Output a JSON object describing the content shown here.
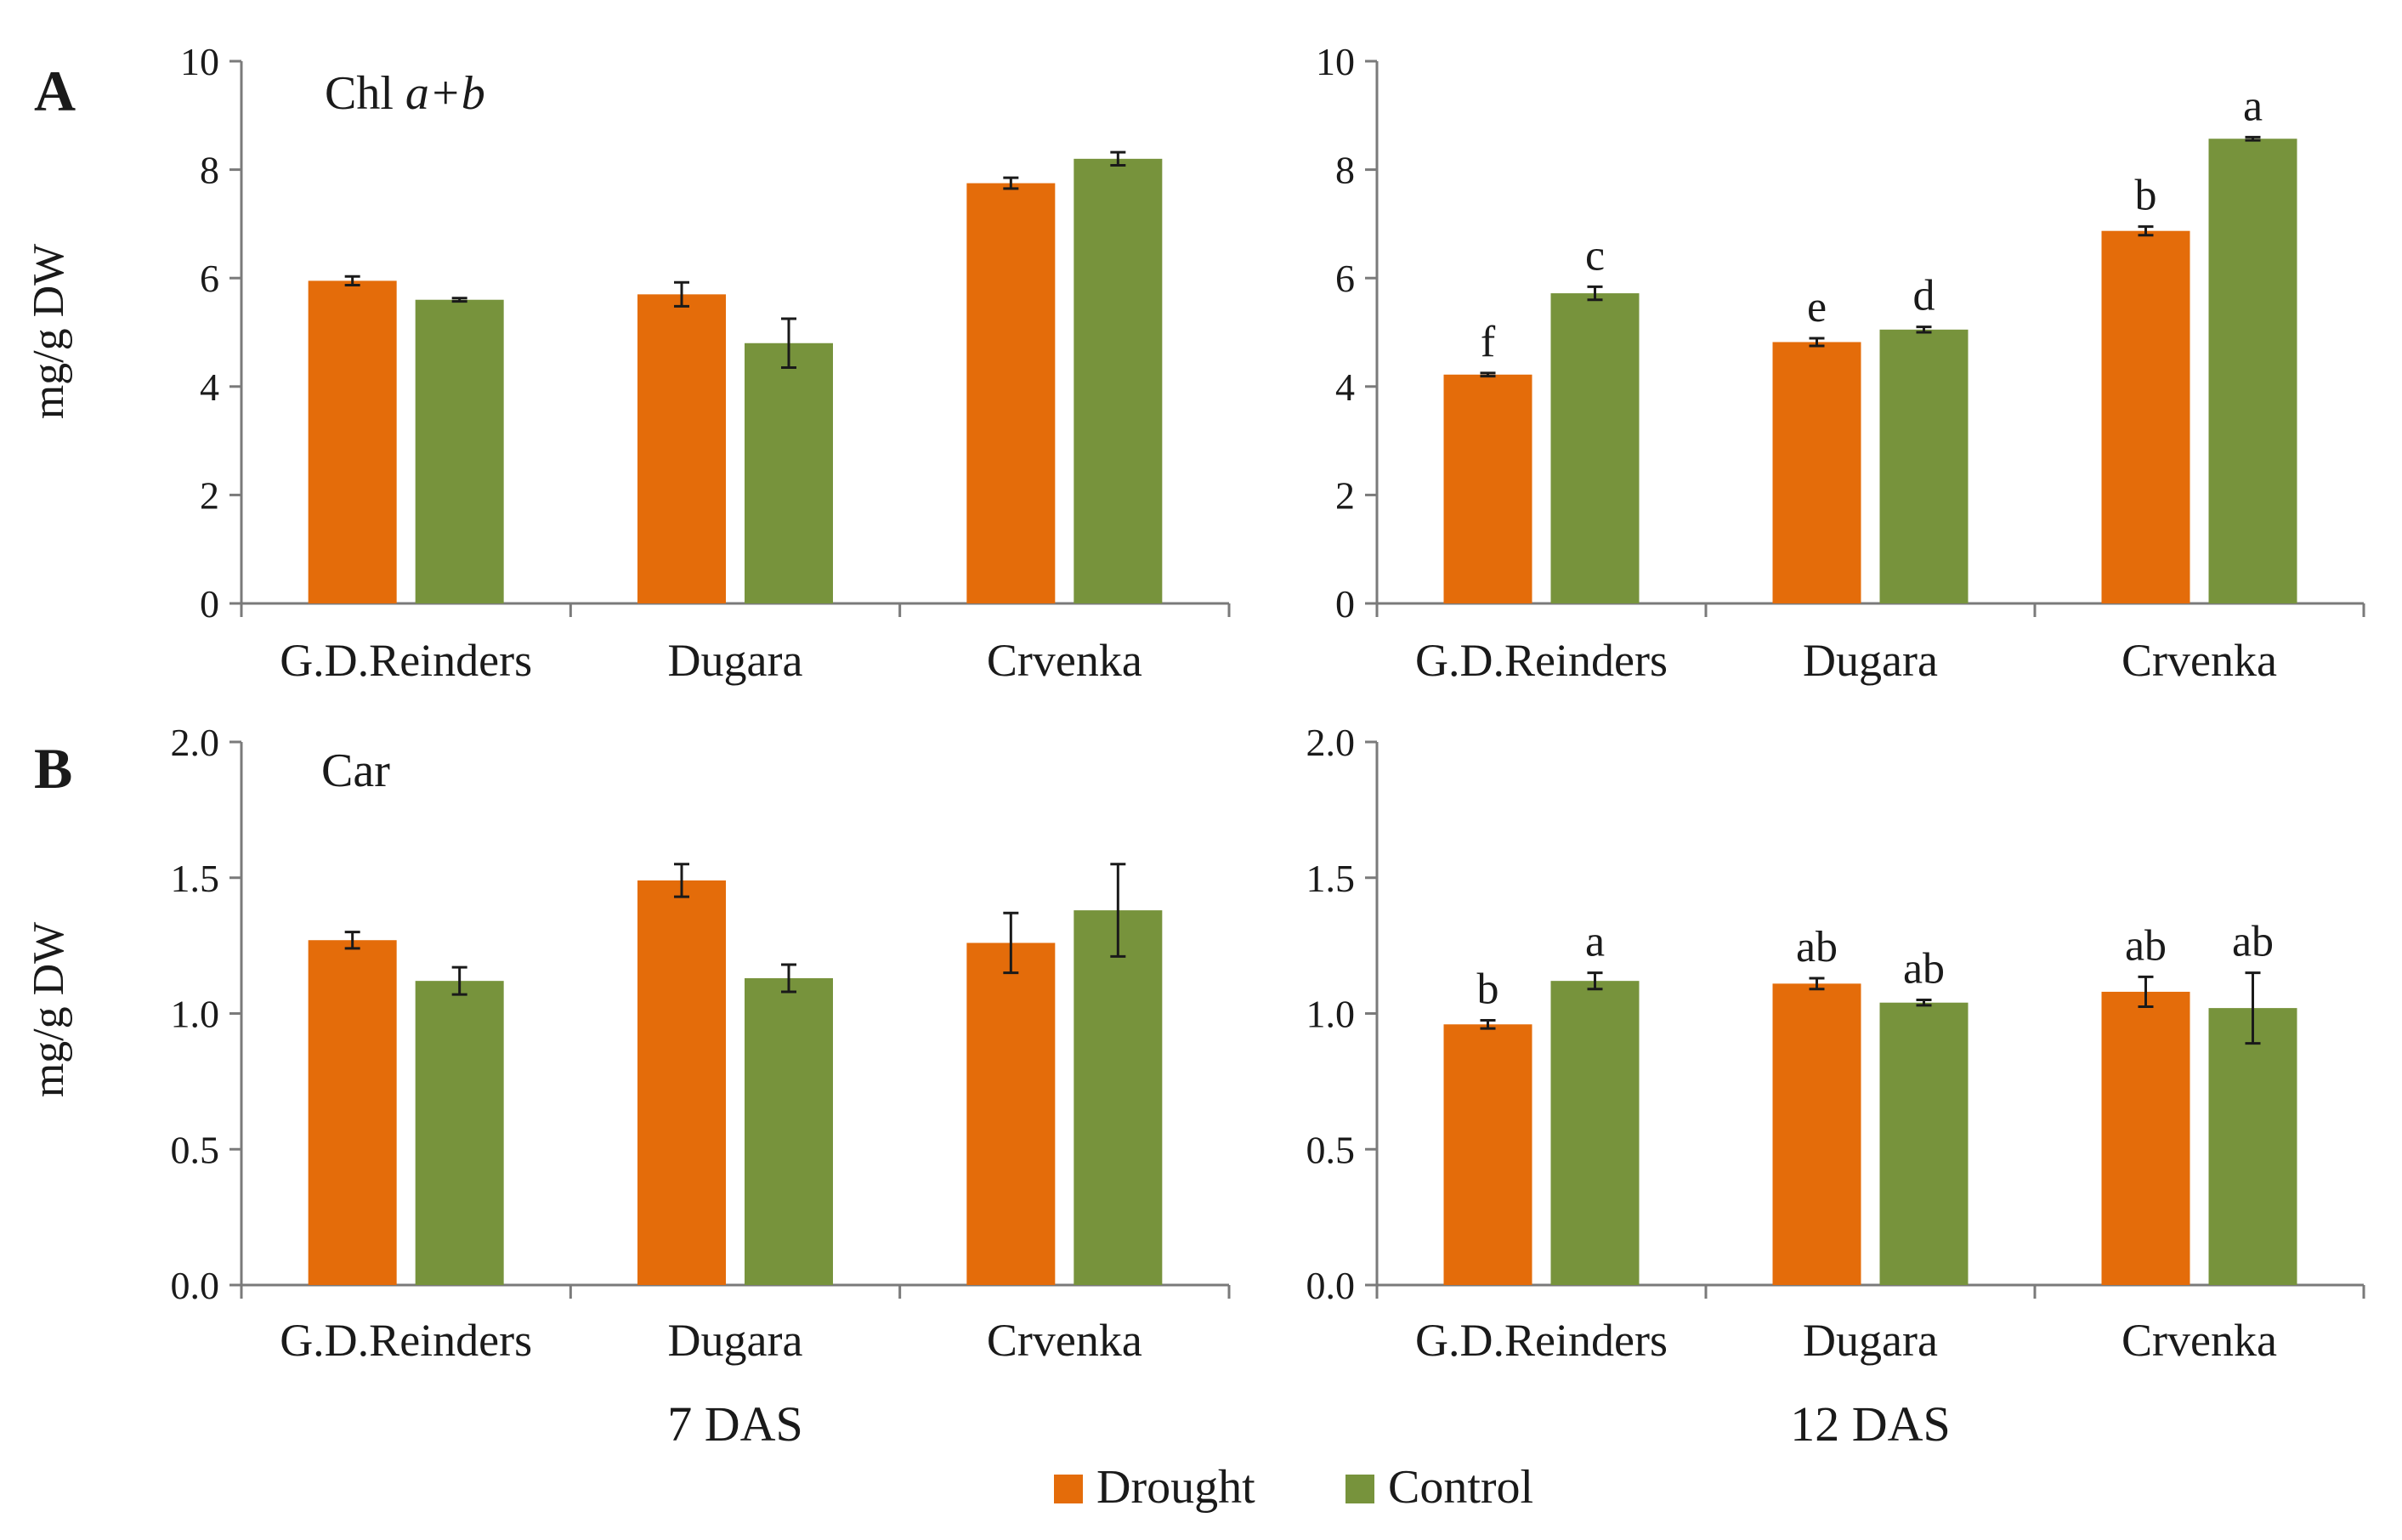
{
  "colors": {
    "drought": "#E46C0A",
    "control": "#77933C",
    "axis": "#7a7a7a"
  },
  "legend": [
    {
      "label": "Drought",
      "color": "#E46C0A"
    },
    {
      "label": "Control",
      "color": "#77933C"
    }
  ],
  "x_group_labels": [
    "7 DAS",
    "12 DAS"
  ],
  "chart_data": [
    {
      "id": "A-7DAS",
      "type": "bar",
      "panel_letter": "A",
      "title_main": "Chl ",
      "title_italic": "a+b",
      "ylabel": "mg/g DW",
      "ylim": [
        0,
        10
      ],
      "yticks": [
        "0",
        "2",
        "4",
        "6",
        "8",
        "10"
      ],
      "ytick_values": [
        0,
        2,
        4,
        6,
        8,
        10
      ],
      "categories": [
        "G.D.Reinders",
        "Dugara",
        "Crvenka"
      ],
      "series": [
        {
          "name": "Drought",
          "values": [
            5.95,
            5.7,
            7.75
          ],
          "errors": [
            0.08,
            0.22,
            0.1
          ],
          "annotations": [
            "",
            "",
            ""
          ]
        },
        {
          "name": "Control",
          "values": [
            5.6,
            4.8,
            8.2
          ],
          "errors": [
            0.03,
            0.45,
            0.12
          ],
          "annotations": [
            "",
            "",
            ""
          ]
        }
      ]
    },
    {
      "id": "A-12DAS",
      "type": "bar",
      "panel_letter": "",
      "title_main": "",
      "title_italic": "",
      "ylabel": "",
      "ylim": [
        0,
        10
      ],
      "yticks": [
        "0",
        "2",
        "4",
        "6",
        "8",
        "10"
      ],
      "ytick_values": [
        0,
        2,
        4,
        6,
        8,
        10
      ],
      "categories": [
        "G.D.Reinders",
        "Dugara",
        "Crvenka"
      ],
      "series": [
        {
          "name": "Drought",
          "values": [
            4.22,
            4.82,
            6.87
          ],
          "errors": [
            0.03,
            0.07,
            0.08
          ],
          "annotations": [
            "f",
            "e",
            "b"
          ]
        },
        {
          "name": "Control",
          "values": [
            5.72,
            5.05,
            8.57
          ],
          "errors": [
            0.12,
            0.05,
            0.03
          ],
          "annotations": [
            "c",
            "d",
            "a"
          ]
        }
      ]
    },
    {
      "id": "B-7DAS",
      "type": "bar",
      "panel_letter": "B",
      "title_main": "Car",
      "title_italic": "",
      "ylabel": "mg/g DW",
      "ylim": [
        0,
        2
      ],
      "yticks": [
        "0.0",
        "0.5",
        "1.0",
        "1.5",
        "2.0"
      ],
      "ytick_values": [
        0,
        0.5,
        1,
        1.5,
        2
      ],
      "categories": [
        "G.D.Reinders",
        "Dugara",
        "Crvenka"
      ],
      "series": [
        {
          "name": "Drought",
          "values": [
            1.27,
            1.49,
            1.26
          ],
          "errors": [
            0.03,
            0.06,
            0.11
          ],
          "annotations": [
            "",
            "",
            ""
          ]
        },
        {
          "name": "Control",
          "values": [
            1.12,
            1.13,
            1.38
          ],
          "errors": [
            0.05,
            0.05,
            0.17
          ],
          "annotations": [
            "",
            "",
            ""
          ]
        }
      ]
    },
    {
      "id": "B-12DAS",
      "type": "bar",
      "panel_letter": "",
      "title_main": "",
      "title_italic": "",
      "ylabel": "",
      "ylim": [
        0,
        2
      ],
      "yticks": [
        "0.0",
        "0.5",
        "1.0",
        "1.5",
        "2.0"
      ],
      "ytick_values": [
        0,
        0.5,
        1,
        1.5,
        2
      ],
      "categories": [
        "G.D.Reinders",
        "Dugara",
        "Crvenka"
      ],
      "series": [
        {
          "name": "Drought",
          "values": [
            0.96,
            1.11,
            1.08
          ],
          "errors": [
            0.015,
            0.02,
            0.055
          ],
          "annotations": [
            "b",
            "ab",
            "ab"
          ]
        },
        {
          "name": "Control",
          "values": [
            1.12,
            1.04,
            1.02
          ],
          "errors": [
            0.03,
            0.01,
            0.13
          ],
          "annotations": [
            "a",
            "ab",
            "ab"
          ]
        }
      ]
    }
  ]
}
